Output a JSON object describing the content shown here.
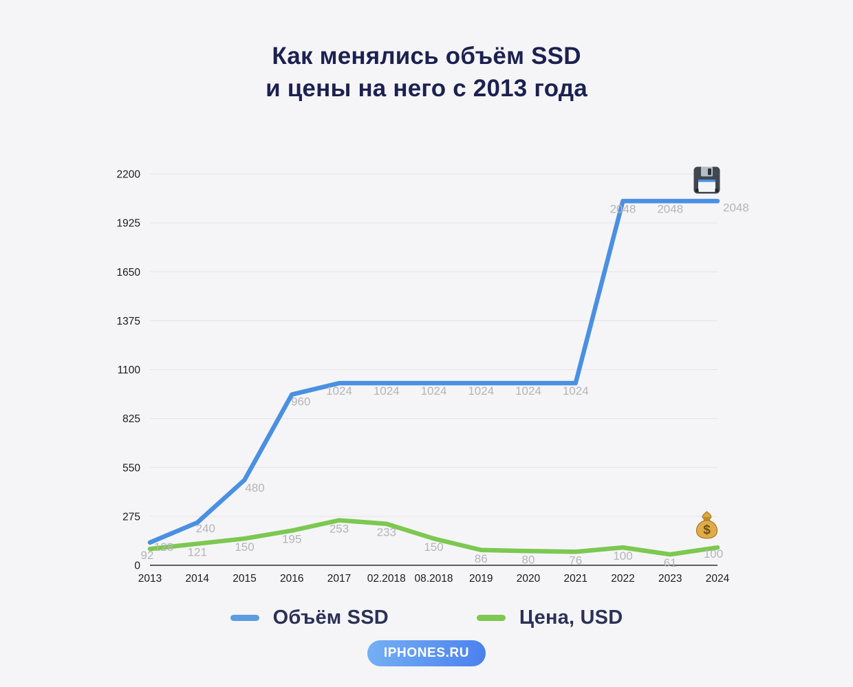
{
  "title": {
    "line1": "Как менялись объём SSD",
    "line2": "и цены на него с 2013 года",
    "color": "#1c2150"
  },
  "chart_data": {
    "type": "line",
    "categories": [
      "2013",
      "2014",
      "2015",
      "2016",
      "2017",
      "02.2018",
      "08.2018",
      "2019",
      "2020",
      "2021",
      "2022",
      "2023",
      "2024"
    ],
    "series": [
      {
        "name": "Объём SSD",
        "color": "#4a90e2",
        "values": [
          128,
          240,
          480,
          960,
          1024,
          1024,
          1024,
          1024,
          1024,
          1024,
          2048,
          2048,
          2048
        ]
      },
      {
        "name": "Цена, USD",
        "color": "#7cc851",
        "values": [
          92,
          121,
          150,
          195,
          253,
          233,
          150,
          86,
          80,
          76,
          100,
          61,
          100
        ]
      }
    ],
    "yticks": [
      0,
      275,
      550,
      825,
      1100,
      1375,
      1650,
      1925,
      2200
    ],
    "ylim": [
      0,
      2200
    ],
    "grid": true,
    "legend_position": "bottom",
    "data_labels": true,
    "label_color": "#b5b5b9",
    "axis_text_color": "#1b1b1d",
    "grid_color": "#e3e3e6",
    "axis_line_color": "#2b2b2e",
    "annotations": [
      {
        "icon": "floppy-disk",
        "near": "2048 line, top right"
      },
      {
        "icon": "money-bag",
        "near": "price line, bottom right"
      }
    ]
  },
  "legend": {
    "swatch_colors": [
      "#5d9ce2",
      "#7cc851"
    ]
  },
  "watermark": {
    "text": "IPHONES.RU",
    "text_color": "#ffffff",
    "bg_from": "#75b0f4",
    "bg_to": "#4a80ee"
  },
  "background_color": "#f5f5f7"
}
